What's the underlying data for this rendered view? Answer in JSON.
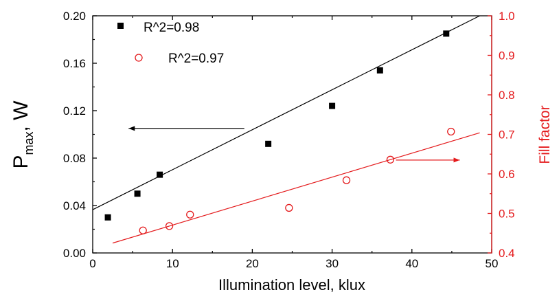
{
  "chart_data": {
    "type": "scatter",
    "title": "",
    "xlabel": "Illumination level, klux",
    "ylabel_left_main": "P",
    "ylabel_left_sub": "max",
    "ylabel_left_tail": ", W",
    "ylabel_right": "Fill factor",
    "xlim": [
      0,
      50
    ],
    "ylim_left": [
      0,
      0.2
    ],
    "ylim_right": [
      0.4,
      1.0
    ],
    "x_ticks": [
      "0",
      "10",
      "20",
      "30",
      "40",
      "50"
    ],
    "y_left_ticks": [
      "0.00",
      "0.04",
      "0.08",
      "0.12",
      "0.16",
      "0.20"
    ],
    "y_right_ticks": [
      "0.4",
      "0.5",
      "0.6",
      "0.7",
      "0.8",
      "0.9",
      "1.0"
    ],
    "colors": {
      "left": "#000000",
      "right": "#e41a1c"
    },
    "series": [
      {
        "axis": "left",
        "marker": "square",
        "legend": "R^2=0.98",
        "x": [
          1.9,
          5.6,
          8.4,
          22.0,
          30.0,
          36.0,
          44.3
        ],
        "y": [
          0.03,
          0.05,
          0.066,
          0.092,
          0.124,
          0.154,
          0.185
        ],
        "fit": {
          "x": [
            0,
            48.5
          ],
          "y": [
            0.0365,
            0.2
          ]
        }
      },
      {
        "axis": "right",
        "marker": "circle",
        "legend": "R^2=0.97",
        "x": [
          6.3,
          9.6,
          12.2,
          24.6,
          31.8,
          37.3,
          44.9
        ],
        "y": [
          0.457,
          0.468,
          0.497,
          0.514,
          0.584,
          0.636,
          0.707
        ],
        "fit": {
          "x": [
            2.5,
            48.5
          ],
          "y": [
            0.425,
            0.704
          ]
        }
      }
    ],
    "legend_position": "top-left",
    "annotations": [
      {
        "type": "arrow",
        "direction": "left",
        "axis": "left",
        "x_from": 19,
        "x_to": 4.5,
        "y": 0.105
      },
      {
        "type": "arrow",
        "direction": "right",
        "axis": "right",
        "x_from": 38,
        "x_to": 46,
        "y": 0.635
      }
    ]
  }
}
